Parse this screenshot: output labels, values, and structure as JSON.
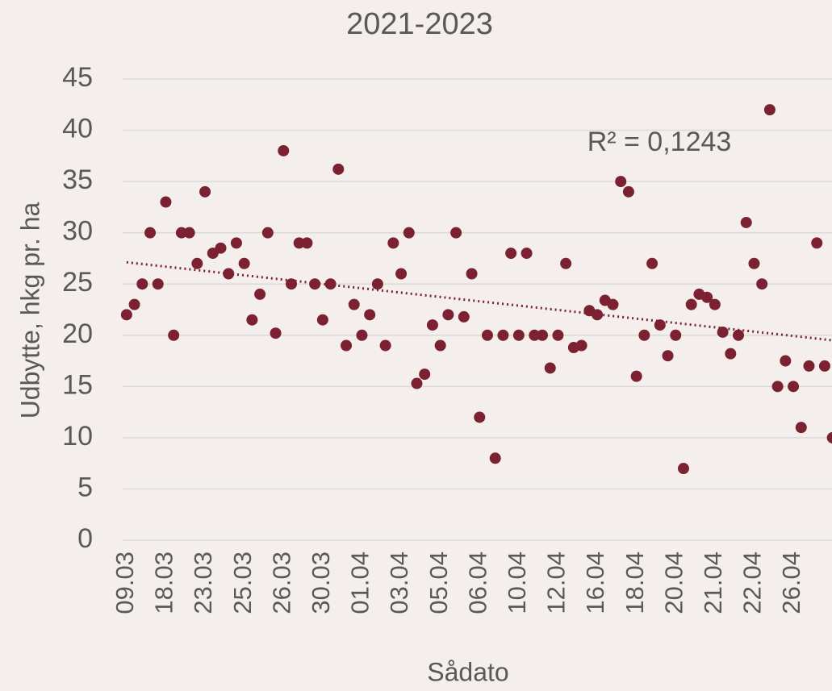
{
  "chart_data": {
    "type": "scatter",
    "title": "2021-2023",
    "xlabel": "Sådato",
    "ylabel": "Udbytte, hkg pr. ha",
    "annotation": "R² = 0,1243",
    "categories": [
      "09.03",
      null,
      null,
      null,
      null,
      "18.03",
      null,
      null,
      null,
      null,
      "23.03",
      null,
      null,
      null,
      null,
      "25.03",
      null,
      null,
      null,
      null,
      "26.03",
      null,
      null,
      null,
      null,
      "30.03",
      null,
      null,
      null,
      null,
      "01.04",
      null,
      null,
      null,
      null,
      "03.04",
      null,
      null,
      null,
      null,
      "05.04",
      null,
      null,
      null,
      null,
      "06.04",
      null,
      null,
      null,
      null,
      "10.04",
      null,
      null,
      null,
      null,
      "12.04",
      null,
      null,
      null,
      null,
      "16.04",
      null,
      null,
      null,
      null,
      "18.04",
      null,
      null,
      null,
      null,
      "20.04",
      null,
      null,
      null,
      null,
      "21.04",
      null,
      null,
      null,
      null,
      "22.04",
      null,
      null,
      null,
      null,
      "26.04",
      null,
      null,
      null,
      null,
      null
    ],
    "values": [
      22,
      23,
      25,
      30,
      25,
      33,
      20,
      30,
      30,
      27,
      34,
      28,
      28.5,
      26,
      29,
      27,
      21.5,
      24,
      30,
      20.2,
      38,
      25,
      29,
      29,
      25,
      21.5,
      25,
      36.2,
      19,
      23,
      20,
      22,
      25,
      19,
      29,
      26,
      30,
      15.3,
      16.2,
      21,
      19,
      22,
      30,
      21.8,
      26,
      12,
      20,
      8,
      20,
      28,
      20,
      28,
      20,
      20,
      16.8,
      20,
      27,
      18.8,
      19,
      22.4,
      22,
      23.4,
      23,
      35,
      34,
      16,
      20,
      27,
      21,
      18,
      20,
      7,
      23,
      24,
      23.7,
      23,
      20.3,
      18.2,
      20,
      31,
      27,
      25,
      42,
      15,
      17.5,
      15,
      11,
      17,
      29,
      17,
      10
    ],
    "color": "#7b2131",
    "trendline": true,
    "ylim": [
      0,
      45
    ],
    "yticks": [
      0,
      5,
      10,
      15,
      20,
      25,
      30,
      35,
      40,
      45
    ],
    "grid": true
  }
}
